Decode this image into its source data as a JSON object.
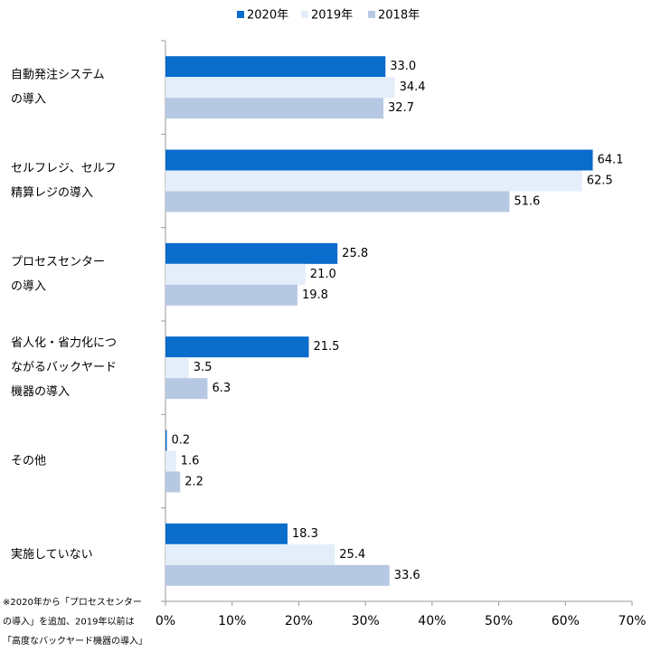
{
  "chart_data": {
    "type": "hbar",
    "categories": [
      [
        "自動発注システム",
        "の導入"
      ],
      [
        "セルフレジ、セルフ",
        "精算レジの導入"
      ],
      [
        "プロセスセンター",
        "の導入"
      ],
      [
        "省人化・省力化につ",
        "ながるバックヤード",
        "機器の導入"
      ],
      [
        "その他"
      ],
      [
        "実施していない"
      ]
    ],
    "series": [
      {
        "name": "2020年",
        "color": "#0a6ccb",
        "values": [
          33.0,
          64.1,
          25.8,
          21.5,
          0.2,
          18.3
        ],
        "value_labels": [
          "33.0",
          "64.1",
          "25.8",
          "21.5",
          "0.2",
          "18.3"
        ]
      },
      {
        "name": "2019年",
        "color": "#e4eefa",
        "values": [
          34.4,
          62.5,
          21.0,
          3.5,
          1.6,
          25.4
        ],
        "value_labels": [
          "34.4",
          "62.5",
          "21.0",
          "3.5",
          "1.6",
          "25.4"
        ]
      },
      {
        "name": "2018年",
        "color": "#b7c8e3",
        "values": [
          32.7,
          51.6,
          19.8,
          6.3,
          2.2,
          33.6
        ],
        "value_labels": [
          "32.7",
          "51.6",
          "19.8",
          "6.3",
          "2.2",
          "33.6"
        ]
      }
    ],
    "xlim": [
      0,
      70
    ],
    "xticks": [
      {
        "value": 0,
        "label": "0%"
      },
      {
        "value": 10,
        "label": "10%"
      },
      {
        "value": 20,
        "label": "20%"
      },
      {
        "value": 30,
        "label": "30%"
      },
      {
        "value": 40,
        "label": "40%"
      },
      {
        "value": 50,
        "label": "50%"
      },
      {
        "value": 60,
        "label": "60%"
      },
      {
        "value": 70,
        "label": "70%"
      }
    ],
    "legend": "top",
    "note": [
      "※2020年から「プロセスセンター",
      "の導入」を追加、2019年以前は",
      "「高度なバックヤード機器の導入」"
    ]
  }
}
